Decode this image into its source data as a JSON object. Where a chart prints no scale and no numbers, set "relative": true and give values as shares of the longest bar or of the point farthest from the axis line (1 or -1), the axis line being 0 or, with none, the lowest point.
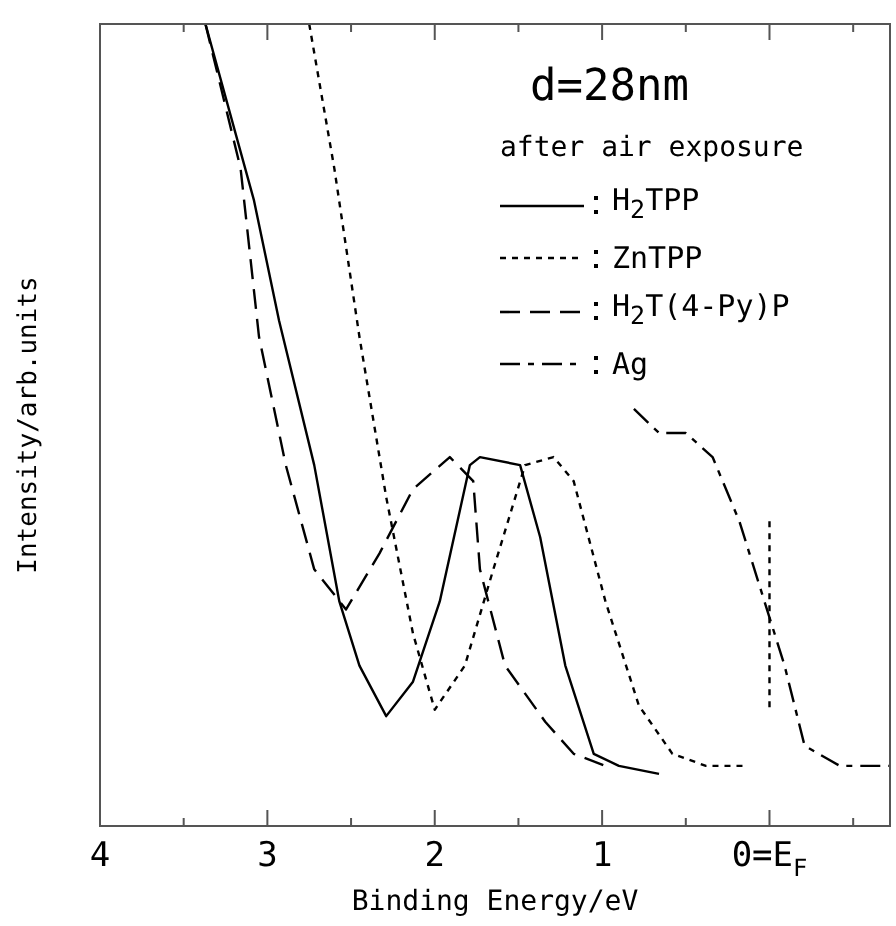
{
  "chart_data": {
    "type": "line",
    "xlabel": "Binding Energy/eV",
    "ylabel": "Intensity/arb.units",
    "relative": true,
    "annotations": [
      "d=28nm",
      "after air exposure"
    ],
    "xlim": [
      4,
      -0.72
    ],
    "xticks": [
      4,
      {
        "value": 3.5,
        "label": null
      },
      3,
      {
        "value": 2.5,
        "label": null
      },
      2,
      {
        "value": 1.5,
        "label": null
      },
      1,
      {
        "value": 0.5,
        "label": null
      },
      {
        "value": 0,
        "label": "0=E$_{F}$"
      },
      {
        "value": -0.5,
        "label": null
      }
    ],
    "legend": "top right",
    "series": [
      {
        "name": "H$_{2}$TPP",
        "color": "#000000",
        "line_style": "solid",
        "x": [
          3.37,
          3.08,
          2.93,
          2.72,
          2.57,
          2.45,
          2.29,
          2.13,
          1.97,
          1.79,
          1.73,
          1.49,
          1.37,
          1.22,
          1.05,
          0.9,
          0.66
        ],
        "values": [
          1.0,
          0.78,
          0.63,
          0.45,
          0.28,
          0.2,
          0.137,
          0.18,
          0.28,
          0.45,
          0.46,
          0.45,
          0.36,
          0.2,
          0.09,
          0.075,
          0.065
        ]
      },
      {
        "name": "ZnTPP",
        "color": "#000000",
        "line_style": "dotted",
        "x": [
          2.75,
          2.6,
          2.45,
          2.29,
          2.13,
          2.0,
          1.82,
          1.65,
          1.46,
          1.29,
          1.17,
          0.98,
          0.78,
          0.58,
          0.38,
          0.14
        ],
        "values": [
          1.0,
          0.82,
          0.61,
          0.41,
          0.24,
          0.145,
          0.2,
          0.32,
          0.45,
          0.46,
          0.43,
          0.28,
          0.15,
          0.09,
          0.075,
          0.075
        ]
      },
      {
        "name": "H$_{2}$T(4-Py)P",
        "color": "#000000",
        "line_style": "dashed",
        "x": [
          3.37,
          3.16,
          3.05,
          2.89,
          2.72,
          2.53,
          2.33,
          2.13,
          1.91,
          1.77,
          1.73,
          1.58,
          1.34,
          1.17,
          0.98
        ],
        "values": [
          1.0,
          0.82,
          0.61,
          0.45,
          0.32,
          0.27,
          0.34,
          0.42,
          0.46,
          0.43,
          0.32,
          0.2,
          0.13,
          0.09,
          0.075
        ]
      },
      {
        "name": "Ag",
        "color": "#000000",
        "line_style": "dashdot",
        "x": [
          0.81,
          0.66,
          0.5,
          0.34,
          0.18,
          0.03,
          -0.09,
          -0.21,
          -0.42,
          -0.72
        ],
        "values": [
          0.52,
          0.49,
          0.49,
          0.46,
          0.38,
          0.28,
          0.2,
          0.1,
          0.075,
          0.075
        ]
      },
      {
        "color": "#000000",
        "line_style": "dotted",
        "x": [
          0,
          0
        ],
        "values": [
          0.38,
          0.145
        ]
      }
    ]
  }
}
